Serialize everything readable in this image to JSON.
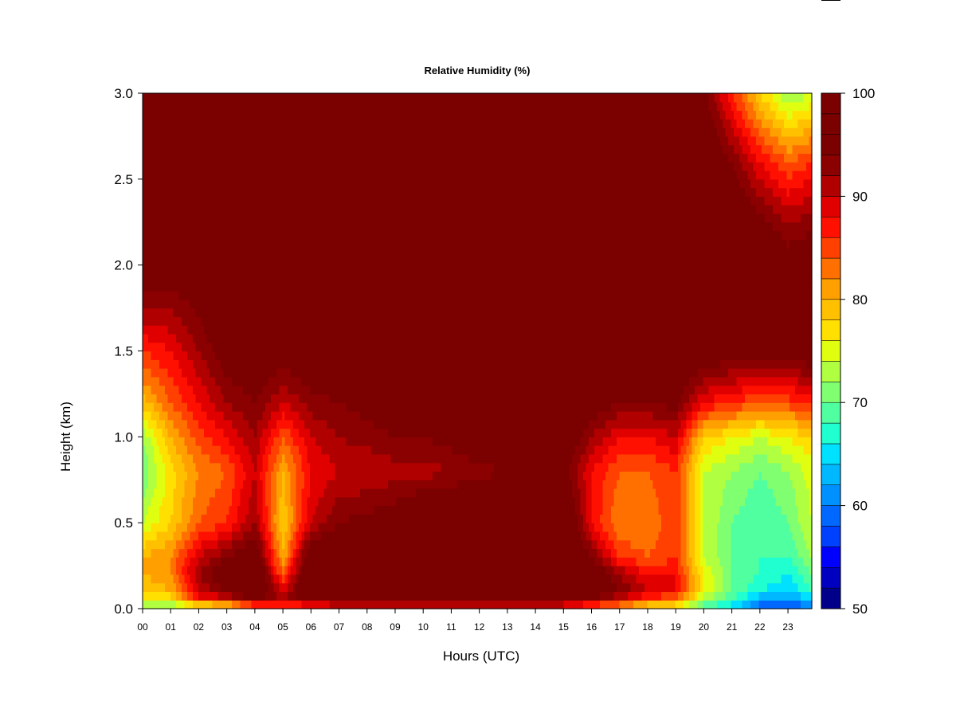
{
  "chart_data": {
    "type": "heatmap",
    "title": "Relative Humidity (%)",
    "xlabel": "Hours (UTC)",
    "ylabel": "Height (km)",
    "x_ticks": [
      "00",
      "01",
      "02",
      "03",
      "04",
      "05",
      "06",
      "07",
      "08",
      "09",
      "10",
      "11",
      "12",
      "13",
      "14",
      "15",
      "16",
      "17",
      "18",
      "19",
      "20",
      "21",
      "22",
      "23"
    ],
    "y_ticks": [
      "0.0",
      "0.5",
      "1.0",
      "1.5",
      "2.0",
      "2.5",
      "3.0"
    ],
    "xlim": [
      0,
      23.85
    ],
    "ylim": [
      0,
      3.0
    ],
    "colorbar": {
      "ticks": [
        "50",
        "60",
        "70",
        "80",
        "90",
        "100"
      ],
      "range": [
        50,
        100
      ],
      "levels": [
        "#00008b",
        "#0000c0",
        "#0000ff",
        "#0040ff",
        "#0068ff",
        "#0090ff",
        "#00b8ff",
        "#00e0ff",
        "#20ffd0",
        "#50ffa0",
        "#80ff70",
        "#b0ff40",
        "#e0ff10",
        "#ffe000",
        "#ffc000",
        "#ffa000",
        "#ff7000",
        "#ff4000",
        "#ff1000",
        "#e00000",
        "#b00000",
        "#8b0000",
        "#7b0000",
        "#7b0000",
        "#7b0000"
      ]
    },
    "rh_profiles": {
      "heights_km": [
        0.0,
        0.05,
        0.1,
        0.2,
        0.3,
        0.5,
        0.8,
        1.0,
        1.2,
        1.5,
        1.8,
        2.2,
        2.6,
        3.0
      ],
      "hours": [
        0,
        1,
        2,
        3,
        4,
        5,
        6,
        7,
        8,
        9,
        10,
        11,
        12,
        13,
        14,
        15,
        16,
        17,
        18,
        19,
        20,
        21,
        22,
        23,
        23.85
      ],
      "values": [
        [
          70,
          75,
          78,
          80,
          80,
          74,
          70,
          72,
          79,
          86,
          93,
          100,
          100,
          100
        ],
        [
          70,
          76,
          80,
          82,
          82,
          78,
          77,
          80,
          84,
          88,
          93,
          100,
          100,
          100
        ],
        [
          72,
          86,
          90,
          92,
          90,
          84,
          82,
          85,
          88,
          92,
          95,
          100,
          100,
          100
        ],
        [
          74,
          88,
          94,
          97,
          94,
          86,
          84,
          88,
          92,
          96,
          98,
          100,
          100,
          100
        ],
        [
          80,
          94,
          98,
          100,
          98,
          92,
          90,
          92,
          94,
          97,
          99,
          100,
          100,
          100
        ],
        [
          80,
          92,
          90,
          84,
          80,
          78,
          80,
          84,
          90,
          96,
          99,
          100,
          100,
          100
        ],
        [
          82,
          96,
          99,
          100,
          98,
          90,
          88,
          90,
          93,
          97,
          99,
          100,
          100,
          100
        ],
        [
          84,
          97,
          100,
          100,
          99,
          94,
          90,
          92,
          94,
          98,
          100,
          100,
          100,
          100
        ],
        [
          84,
          97,
          100,
          100,
          100,
          95,
          90,
          93,
          95,
          98,
          100,
          100,
          100,
          100
        ],
        [
          85,
          97,
          100,
          100,
          100,
          96,
          91,
          94,
          96,
          98,
          100,
          100,
          100,
          100
        ],
        [
          85,
          97,
          100,
          100,
          100,
          99,
          91,
          94,
          96,
          99,
          100,
          100,
          100,
          100
        ],
        [
          85,
          97,
          100,
          100,
          100,
          99,
          92,
          95,
          96,
          99,
          100,
          100,
          100,
          100
        ],
        [
          85,
          97,
          100,
          100,
          100,
          100,
          93,
          97,
          98,
          100,
          100,
          100,
          100,
          100
        ],
        [
          85,
          97,
          100,
          100,
          100,
          100,
          94,
          98,
          99,
          100,
          100,
          100,
          100,
          100
        ],
        [
          85,
          96,
          100,
          100,
          100,
          100,
          95,
          98,
          99,
          100,
          100,
          100,
          100,
          100
        ],
        [
          84,
          96,
          100,
          100,
          100,
          100,
          95,
          98,
          99,
          100,
          100,
          100,
          100,
          100
        ],
        [
          82,
          92,
          98,
          98,
          94,
          88,
          88,
          92,
          96,
          99,
          100,
          100,
          100,
          100
        ],
        [
          80,
          88,
          94,
          92,
          86,
          82,
          84,
          88,
          94,
          98,
          100,
          100,
          100,
          100
        ],
        [
          76,
          84,
          90,
          88,
          84,
          82,
          84,
          88,
          94,
          98,
          100,
          100,
          98,
          97
        ],
        [
          74,
          82,
          88,
          88,
          86,
          86,
          86,
          90,
          95,
          98,
          100,
          100,
          99,
          98
        ],
        [
          68,
          72,
          76,
          76,
          74,
          74,
          74,
          78,
          88,
          97,
          100,
          100,
          98,
          95
        ],
        [
          64,
          68,
          70,
          70,
          70,
          70,
          72,
          76,
          86,
          96,
          100,
          99,
          94,
          86
        ],
        [
          58,
          62,
          66,
          68,
          68,
          68,
          70,
          74,
          84,
          96,
          99,
          96,
          88,
          78
        ],
        [
          56,
          60,
          64,
          66,
          68,
          70,
          72,
          76,
          85,
          96,
          98,
          93,
          84,
          72
        ],
        [
          60,
          64,
          68,
          70,
          72,
          74,
          75,
          78,
          86,
          97,
          98,
          94,
          86,
          74
        ]
      ]
    }
  }
}
